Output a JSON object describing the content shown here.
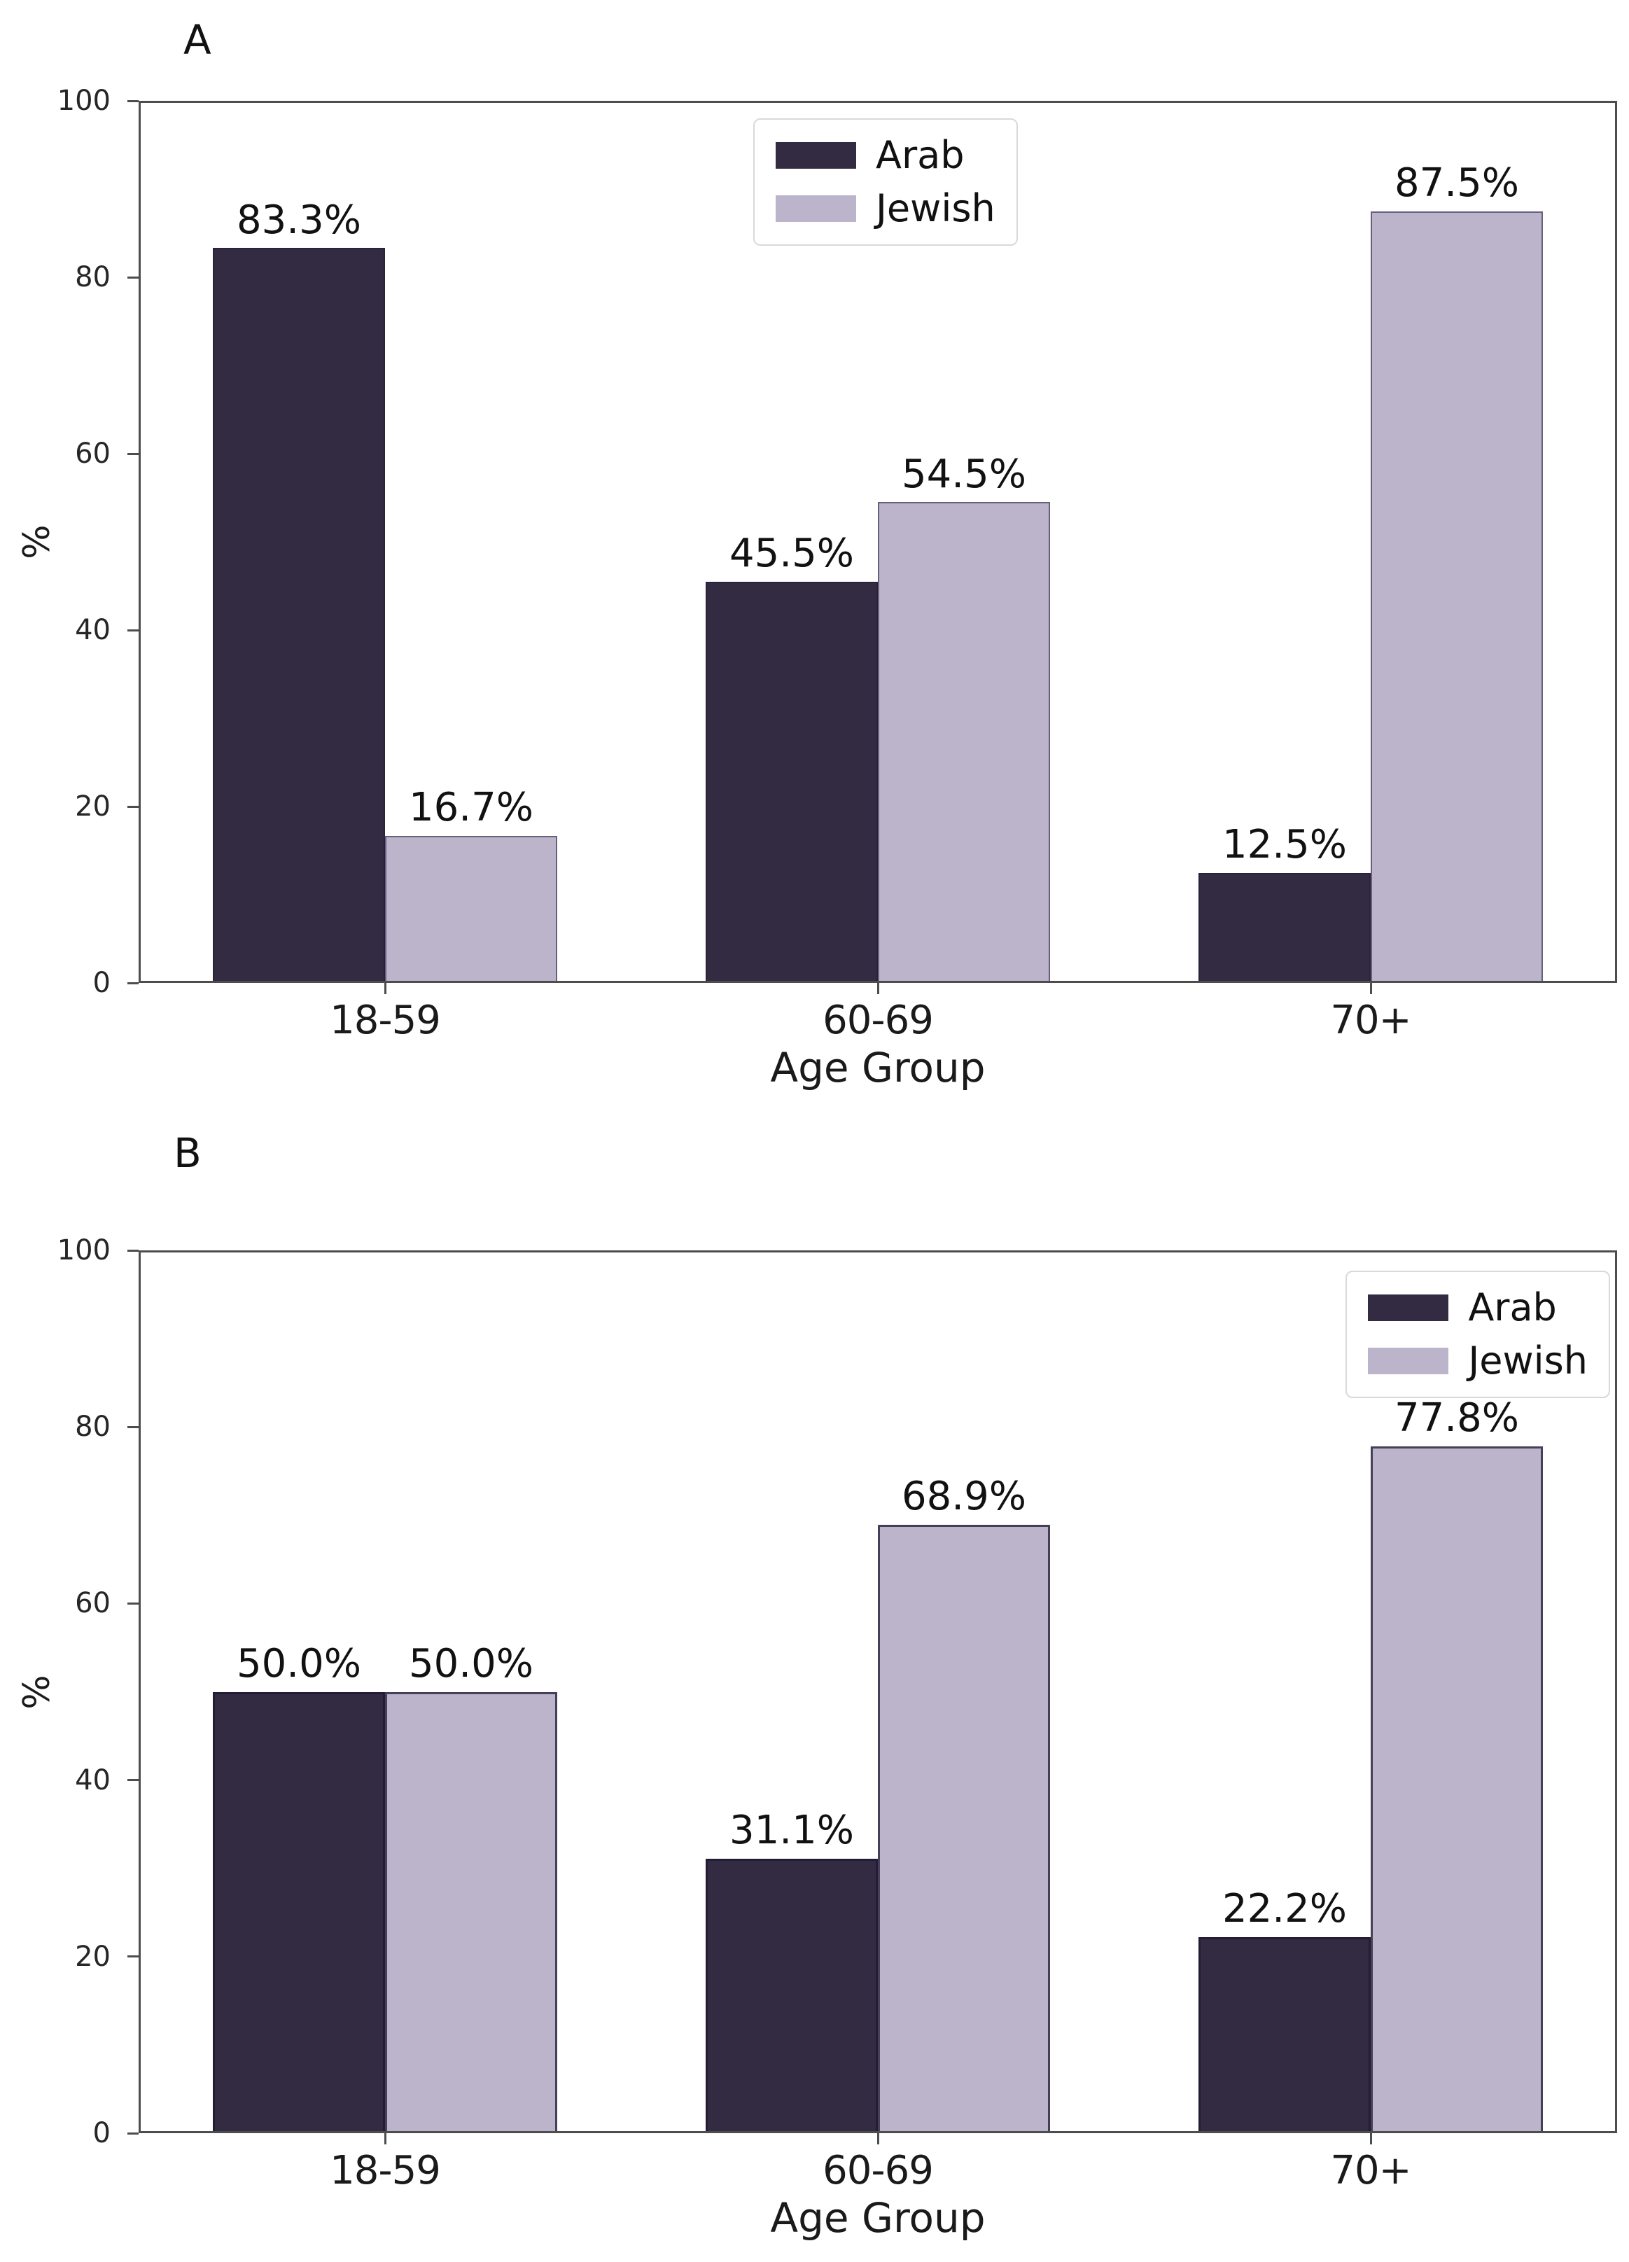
{
  "figure_title": "",
  "colors": {
    "arab_bar": "#332b42",
    "jewish_bar": "#bcb4cb",
    "spine": "#4d4d4d",
    "text": "#111111",
    "tick_text": "#262626",
    "legend_border": "#d9d9d9",
    "background": "#ffffff"
  },
  "chart_data": [
    {
      "type": "bar",
      "panel_label": "A",
      "categories": [
        "18-59",
        "60-69",
        "70+"
      ],
      "series": [
        {
          "name": "Arab",
          "color": "#332b42",
          "values": [
            83.3,
            45.5,
            12.5
          ],
          "data_labels": [
            "83.3%",
            "45.5%",
            "12.5%"
          ]
        },
        {
          "name": "Jewish",
          "color": "#bcb4cb",
          "values": [
            16.7,
            54.5,
            87.5
          ],
          "data_labels": [
            "16.7%",
            "54.5%",
            "87.5%"
          ]
        }
      ],
      "xlabel": "Age Group",
      "ylabel": "%",
      "ylim": [
        0,
        100
      ],
      "yticks": [
        0,
        20,
        40,
        60,
        80,
        100
      ],
      "legend_position": "upper center",
      "legend_entries": [
        "Arab",
        "Jewish"
      ],
      "grid": false
    },
    {
      "type": "bar",
      "panel_label": "B",
      "categories": [
        "18-59",
        "60-69",
        "70+"
      ],
      "series": [
        {
          "name": "Arab",
          "color": "#332b42",
          "values": [
            50.0,
            31.1,
            22.2
          ],
          "data_labels": [
            "50.0%",
            "31.1%",
            "22.2%"
          ]
        },
        {
          "name": "Jewish",
          "color": "#bcb4cb",
          "values": [
            50.0,
            68.9,
            77.8
          ],
          "data_labels": [
            "50.0%",
            "68.9%",
            "77.8%"
          ]
        }
      ],
      "xlabel": "Age Group",
      "ylabel": "%",
      "ylim": [
        0,
        100
      ],
      "yticks": [
        0,
        20,
        40,
        60,
        80,
        100
      ],
      "legend_position": "upper right",
      "legend_entries": [
        "Arab",
        "Jewish"
      ],
      "grid": false
    }
  ]
}
